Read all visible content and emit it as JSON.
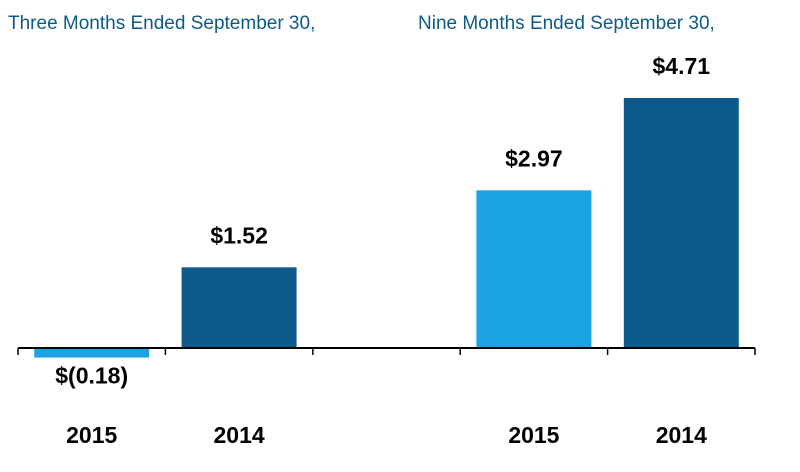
{
  "chart_data": {
    "type": "bar",
    "group_titles": [
      "Three Months Ended September 30,",
      "Nine Months Ended September 30,"
    ],
    "categories": [
      "2015",
      "2014",
      null,
      "2015",
      "2014"
    ],
    "values": [
      -0.18,
      1.52,
      null,
      2.97,
      4.71
    ],
    "value_labels": [
      "$(0.18)",
      "$1.52",
      null,
      "$2.97",
      "$4.71"
    ],
    "colors": [
      "#1ba3e3",
      "#0d5a8a",
      null,
      "#1ba3e3",
      "#0d5a8a"
    ]
  }
}
